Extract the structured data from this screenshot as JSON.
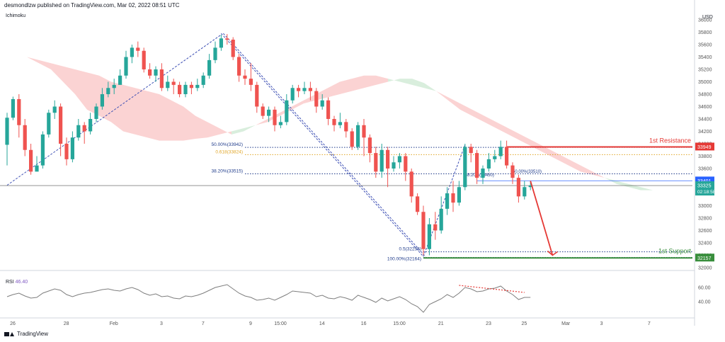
{
  "header": {
    "publisher": "desmondlzw published on TradingView.com, Mar 02, 2022 08:51 UTC"
  },
  "indicator": "Ichimoku",
  "currency": "USD",
  "footer": {
    "brand": "TradingView"
  },
  "colors": {
    "bull": "#26a69a",
    "bear": "#ef5350",
    "resistance": "#e53935",
    "support": "#388e3c",
    "fib": "#1e3a8a",
    "fib_gold": "#e0a526",
    "cloud_bear": "#fbd3d3",
    "cloud_bull": "#d9eedd",
    "rsi": "#7e7e7e"
  },
  "chart_data": {
    "type": "candlestick",
    "ylim": [
      32000,
      36000
    ],
    "yticks": [
      "36000",
      "35800",
      "35600",
      "35400",
      "35200",
      "35000",
      "34800",
      "34600",
      "34400",
      "34200",
      "34000",
      "33800",
      "33600",
      "33400",
      "33200",
      "33000",
      "32800",
      "32600",
      "32400",
      "32200",
      "32000"
    ],
    "xtick_labels": [
      "26",
      "28",
      "Feb",
      "3",
      "7",
      "9",
      "15:00",
      "14",
      "16",
      "15:00",
      "21",
      "23",
      "25",
      "Mar",
      "3",
      "7"
    ],
    "candles": [
      [
        33983,
        34420,
        34500,
        33650
      ],
      [
        34420,
        34720,
        34760,
        34380
      ],
      [
        34720,
        34300,
        34800,
        34100
      ],
      [
        34300,
        33900,
        34400,
        33800
      ],
      [
        33900,
        33550,
        34000,
        33500
      ],
      [
        33550,
        33650,
        33800,
        33600
      ],
      [
        33650,
        34150,
        34200,
        33600
      ],
      [
        34150,
        34500,
        34550,
        34100
      ],
      [
        34500,
        34600,
        34700,
        34400
      ],
      [
        34600,
        34000,
        34650,
        33800
      ],
      [
        34000,
        33750,
        34100,
        33650
      ],
      [
        33750,
        34100,
        34200,
        33700
      ],
      [
        34100,
        34300,
        34400,
        34050
      ],
      [
        34300,
        34200,
        34350,
        34000
      ],
      [
        34200,
        34400,
        34500,
        34150
      ],
      [
        34400,
        34600,
        34650,
        34350
      ],
      [
        34600,
        34800,
        34900,
        34550
      ],
      [
        34800,
        34900,
        35000,
        34750
      ],
      [
        34900,
        34950,
        35050,
        34800
      ],
      [
        34950,
        35100,
        35200,
        35000
      ],
      [
        35100,
        35400,
        35500,
        35050
      ],
      [
        35400,
        35550,
        35600,
        35300
      ],
      [
        35550,
        35500,
        35650,
        35400
      ],
      [
        35500,
        35200,
        35550,
        35150
      ],
      [
        35200,
        35100,
        35300,
        35050
      ],
      [
        35100,
        35200,
        35250,
        35000
      ],
      [
        35200,
        34900,
        35300,
        34850
      ],
      [
        34900,
        35000,
        35100,
        34850
      ],
      [
        35000,
        34950,
        35050,
        34800
      ],
      [
        34950,
        34800,
        35000,
        34750
      ],
      [
        34800,
        34950,
        35000,
        34750
      ],
      [
        34950,
        34900,
        35000,
        34800
      ],
      [
        34900,
        34950,
        35050,
        34850
      ],
      [
        34950,
        35100,
        35150,
        34900
      ],
      [
        35100,
        35350,
        35450,
        35050
      ],
      [
        35350,
        35550,
        35650,
        35300
      ],
      [
        35550,
        35700,
        35760,
        35500
      ],
      [
        35700,
        35680,
        35770,
        35600
      ],
      [
        35680,
        35400,
        35720,
        35350
      ],
      [
        35400,
        35100,
        35450,
        35000
      ],
      [
        35100,
        35050,
        35200,
        34950
      ],
      [
        35050,
        34950,
        35300,
        34850
      ],
      [
        34950,
        34600,
        35000,
        34500
      ],
      [
        34600,
        34450,
        34650,
        34400
      ],
      [
        34450,
        34550,
        34600,
        34350
      ],
      [
        34550,
        34300,
        34600,
        34200
      ],
      [
        34300,
        34350,
        34450,
        34250
      ],
      [
        34350,
        34700,
        34800,
        34300
      ],
      [
        34700,
        34900,
        34950,
        34650
      ],
      [
        34900,
        34850,
        34950,
        34750
      ],
      [
        34850,
        34900,
        35000,
        34800
      ],
      [
        34900,
        34850,
        35000,
        34700
      ],
      [
        34850,
        34600,
        34900,
        34500
      ],
      [
        34600,
        34700,
        34800,
        34550
      ],
      [
        34700,
        34400,
        34750,
        34300
      ],
      [
        34400,
        34300,
        34450,
        34200
      ],
      [
        34300,
        34350,
        34500,
        34250
      ],
      [
        34350,
        34200,
        34400,
        34100
      ],
      [
        34200,
        33950,
        34250,
        33900
      ],
      [
        33950,
        34300,
        34350,
        33900
      ],
      [
        34300,
        34100,
        34400,
        33800
      ],
      [
        34100,
        33850,
        34150,
        33700
      ],
      [
        33850,
        33550,
        33950,
        33450
      ],
      [
        33550,
        33900,
        34000,
        33450
      ],
      [
        33900,
        33600,
        33950,
        33300
      ],
      [
        33600,
        33700,
        33800,
        33550
      ],
      [
        33700,
        33800,
        33850,
        33600
      ],
      [
        33800,
        33550,
        33850,
        33400
      ],
      [
        33550,
        33150,
        33600,
        33050
      ],
      [
        33150,
        32900,
        33200,
        32850
      ],
      [
        32900,
        32300,
        33000,
        32200
      ],
      [
        32300,
        32700,
        32800,
        32200
      ],
      [
        32700,
        32600,
        32900,
        32450
      ],
      [
        32600,
        32950,
        33150,
        32550
      ],
      [
        32950,
        33200,
        33300,
        32850
      ],
      [
        33200,
        33050,
        33400,
        32900
      ],
      [
        33050,
        33300,
        33400,
        33000
      ],
      [
        33300,
        33950,
        34000,
        33250
      ],
      [
        33950,
        33850,
        34000,
        33700
      ],
      [
        33850,
        33450,
        33900,
        33350
      ],
      [
        33450,
        33600,
        33650,
        33350
      ],
      [
        33600,
        33750,
        33850,
        33550
      ],
      [
        33750,
        33800,
        33900,
        33700
      ],
      [
        33800,
        33950,
        34050,
        33750
      ],
      [
        33950,
        33650,
        34050,
        33600
      ],
      [
        33650,
        33450,
        33700,
        33350
      ],
      [
        33450,
        33150,
        33500,
        33050
      ],
      [
        33150,
        33300,
        33400,
        33100
      ],
      [
        33300,
        33325,
        33380,
        33250
      ]
    ],
    "ichimoku_cloud": {
      "span_a": [
        35500,
        35450,
        35400,
        35300,
        35200,
        35000,
        34800,
        34550,
        34450,
        34350,
        34200,
        34150,
        34100,
        34050,
        34050,
        34050,
        34080,
        34100,
        34150,
        34200,
        34250,
        34300,
        34350,
        34450,
        34550,
        34650,
        34700,
        34750,
        34800,
        34850,
        34900,
        34950,
        35000,
        35050,
        35050,
        34980,
        34850,
        34700,
        34550,
        34450,
        34350,
        34250,
        34150,
        34050,
        33950,
        33850,
        33750,
        33650,
        33550,
        33500,
        33450,
        33400,
        33350,
        33300,
        33250,
        33250,
        33250,
        33250
      ],
      "span_b": [
        35500,
        35450,
        35400,
        35350,
        35300,
        35250,
        35200,
        35150,
        35100,
        35000,
        34950,
        34900,
        34850,
        34800,
        34700,
        34600,
        34450,
        34350,
        34250,
        34150,
        34200,
        34300,
        34400,
        34500,
        34600,
        34700,
        34800,
        34900,
        35000,
        35050,
        35100,
        35100,
        35050,
        35000,
        34950,
        34900,
        34850,
        34750,
        34650,
        34550,
        34450,
        34350,
        34250,
        34150,
        34050,
        33950,
        33850,
        33750,
        33650,
        33550,
        33450,
        33350,
        33300,
        33250,
        33250,
        33250,
        33250,
        33250
      ]
    },
    "fibonacci": [
      {
        "label": "50.00%(33942)",
        "value": 33942
      },
      {
        "label": "0.618(33824)",
        "value": 33824
      },
      {
        "label": "38.20%(33515)",
        "value": 33515
      },
      {
        "label": "0.5(32256)",
        "value": 32256
      },
      {
        "label": "100.00%(32164)",
        "value": 32164
      },
      {
        "label": "38.20%(33450)",
        "value": 33450
      },
      {
        "label": "50.00%(33510)",
        "value": 33510
      }
    ],
    "levels": {
      "resistance": {
        "label": "1st Resistance",
        "value": 33949,
        "tag": "33949"
      },
      "support": {
        "label": "1st Support",
        "value": 32157,
        "tag": "32157"
      },
      "blue_level": {
        "value": 33401,
        "tag": "33401"
      },
      "last_price": {
        "value": 33325,
        "tag": "33325",
        "countdown": "02:18:58"
      }
    },
    "trendlines": [
      {
        "from": [
          0,
          33330
        ],
        "to": [
          36,
          35760
        ]
      }
    ],
    "forecast_arrow": {
      "from": [
        88,
        33400
      ],
      "to": [
        91,
        32200
      ]
    },
    "rsi": {
      "label": "RSI",
      "value": "46.40",
      "ylim": [
        20,
        80
      ],
      "yticks": [
        "60.00",
        "40.00"
      ],
      "values": [
        47,
        50,
        52,
        48,
        45,
        46,
        52,
        55,
        58,
        56,
        50,
        47,
        50,
        52,
        53,
        55,
        57,
        58,
        56,
        55,
        58,
        60,
        57,
        52,
        49,
        51,
        47,
        48,
        45,
        44,
        48,
        47,
        49,
        52,
        56,
        60,
        62,
        64,
        58,
        52,
        48,
        46,
        42,
        43,
        45,
        42,
        46,
        50,
        55,
        54,
        53,
        52,
        47,
        49,
        45,
        44,
        47,
        45,
        42,
        49,
        46,
        43,
        39,
        45,
        41,
        44,
        47,
        43,
        37,
        33,
        25,
        36,
        40,
        44,
        50,
        46,
        52,
        60,
        58,
        54,
        55,
        58,
        59,
        62,
        55,
        50,
        43,
        46,
        46
      ],
      "divergence": {
        "from": [
          76,
          63
        ],
        "to": [
          87,
          53
        ]
      }
    }
  }
}
